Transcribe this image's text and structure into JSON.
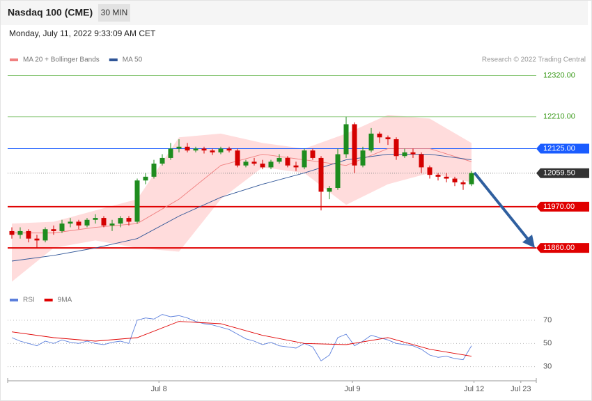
{
  "header": {
    "title": "Nasdaq 100 (CME)",
    "interval": "30 MIN",
    "date": "Monday, July 11, 2022 9:33:09 AM CET",
    "credit": "Research © 2022 Trading Central"
  },
  "chart_data": [
    {
      "type": "candlestick",
      "x": [
        0,
        1,
        2,
        3,
        4,
        5,
        6,
        7,
        8,
        9,
        10,
        11,
        12,
        13,
        14,
        15,
        16,
        17,
        18,
        19,
        20,
        21,
        22,
        23,
        24,
        25,
        26,
        27,
        28,
        29,
        30,
        31,
        32,
        33,
        34,
        35,
        36,
        37,
        38,
        39,
        40,
        41,
        42,
        43,
        44,
        45,
        46,
        47,
        48,
        49,
        50,
        51,
        52,
        53,
        54,
        55
      ],
      "open": [
        11905,
        11895,
        11905,
        11885,
        11880,
        11910,
        11905,
        11925,
        11930,
        11920,
        11935,
        11940,
        11920,
        11925,
        11940,
        11930,
        12040,
        12050,
        12085,
        12100,
        12125,
        12130,
        12120,
        12125,
        12120,
        12115,
        12125,
        12120,
        12080,
        12090,
        12085,
        12075,
        12090,
        12100,
        12080,
        12075,
        12120,
        12100,
        12010,
        12020,
        12110,
        12190,
        12080,
        12120,
        12165,
        12155,
        12150,
        12105,
        12115,
        12110,
        12075,
        12055,
        12050,
        12045,
        12035,
        12030
      ],
      "high": [
        11915,
        11915,
        11910,
        11895,
        11915,
        11920,
        11935,
        11940,
        11935,
        11940,
        11950,
        11945,
        11935,
        11945,
        11945,
        12045,
        12060,
        12095,
        12110,
        12140,
        12150,
        12140,
        12130,
        12130,
        12125,
        12130,
        12130,
        12125,
        12095,
        12100,
        12095,
        12095,
        12110,
        12105,
        12090,
        12125,
        12125,
        12105,
        12025,
        12125,
        12210,
        12195,
        12130,
        12180,
        12170,
        12160,
        12155,
        12125,
        12125,
        12115,
        12080,
        12060,
        12060,
        12050,
        12040,
        12065
      ],
      "low": [
        11885,
        11885,
        11875,
        11860,
        11875,
        11895,
        11900,
        11915,
        11910,
        11915,
        11925,
        11915,
        11905,
        11915,
        11920,
        11925,
        12030,
        12045,
        12080,
        12095,
        12115,
        12115,
        12115,
        12112,
        12108,
        12110,
        12115,
        12075,
        12075,
        12080,
        12070,
        12070,
        12085,
        12075,
        12065,
        12070,
        12095,
        11960,
        11990,
        12015,
        12100,
        12060,
        12075,
        12115,
        12140,
        12135,
        12095,
        12100,
        12100,
        12060,
        12045,
        12040,
        12035,
        12025,
        12015,
        12025
      ],
      "close": [
        11895,
        11905,
        11885,
        11880,
        11910,
        11905,
        11925,
        11930,
        11920,
        11935,
        11940,
        11920,
        11925,
        11940,
        11930,
        12040,
        12050,
        12085,
        12100,
        12125,
        12130,
        12120,
        12125,
        12120,
        12115,
        12125,
        12120,
        12080,
        12090,
        12085,
        12075,
        12090,
        12100,
        12080,
        12075,
        12120,
        12100,
        12010,
        12020,
        12110,
        12190,
        12080,
        12120,
        12165,
        12155,
        12150,
        12105,
        12115,
        12110,
        12075,
        12055,
        12050,
        12045,
        12035,
        12030,
        12060
      ],
      "up_color": "#1e8c1e",
      "down_color": "#d40000",
      "series": [
        {
          "name": "MA 20 + Bollinger Bands",
          "color": "#f08080",
          "band_color": "#ffdcdc",
          "x": [
            0,
            5,
            10,
            15,
            20,
            25,
            30,
            35,
            40,
            45,
            50,
            55
          ],
          "values": [
            11900,
            11900,
            11915,
            11925,
            11990,
            12080,
            12110,
            12095,
            12080,
            12125,
            12125,
            12090
          ],
          "upper": [
            11925,
            11930,
            11960,
            11990,
            12155,
            12165,
            12140,
            12125,
            12165,
            12215,
            12205,
            12140
          ],
          "lower": [
            11770,
            11860,
            11880,
            11860,
            11850,
            11990,
            12075,
            12060,
            11975,
            12030,
            12060,
            12035
          ]
        },
        {
          "name": "MA 50",
          "color": "#2f5597",
          "x": [
            0,
            5,
            10,
            15,
            20,
            25,
            30,
            35,
            40,
            45,
            50,
            55
          ],
          "values": [
            11825,
            11840,
            11860,
            11885,
            11945,
            11995,
            12030,
            12060,
            12095,
            12110,
            12110,
            12095
          ]
        }
      ],
      "levels": [
        {
          "value": 12320,
          "label": "12320.00",
          "color": "#8cc87a",
          "text_color": "#3a9a1a",
          "boxed": false
        },
        {
          "value": 12210,
          "label": "12210.00",
          "color": "#8cc87a",
          "text_color": "#3a9a1a",
          "boxed": false
        },
        {
          "value": 12125,
          "label": "12125.00",
          "color": "#1a5cff",
          "text_color": "#ffffff",
          "boxed": true
        },
        {
          "value": 12059.5,
          "label": "12059.50",
          "color": "#333333",
          "text_color": "#ffffff",
          "boxed": true,
          "dotted": true
        },
        {
          "value": 11970,
          "label": "11970.00",
          "color": "#e00000",
          "text_color": "#ffffff",
          "boxed": true
        },
        {
          "value": 11860,
          "label": "11860.00",
          "color": "#e00000",
          "text_color": "#ffffff",
          "boxed": true
        }
      ],
      "xlim": [
        -0.5,
        62.75
      ],
      "ylim": [
        11760,
        12345
      ]
    },
    {
      "type": "line",
      "series": [
        {
          "name": "RSI",
          "color": "#5b7fdc",
          "x": [
            0,
            1,
            2,
            3,
            4,
            5,
            6,
            7,
            8,
            9,
            10,
            11,
            12,
            13,
            14,
            15,
            16,
            17,
            18,
            19,
            20,
            21,
            22,
            23,
            24,
            25,
            26,
            27,
            28,
            29,
            30,
            31,
            32,
            33,
            34,
            35,
            36,
            37,
            38,
            39,
            40,
            41,
            42,
            43,
            44,
            45,
            46,
            47,
            48,
            49,
            50,
            51,
            52,
            53,
            54,
            55
          ],
          "values": [
            55,
            52,
            50,
            48,
            52,
            50,
            53,
            51,
            50,
            52,
            50,
            49,
            51,
            52,
            50,
            70,
            72,
            71,
            75,
            73,
            74,
            72,
            69,
            67,
            66,
            64,
            62,
            58,
            54,
            52,
            49,
            51,
            48,
            47,
            46,
            50,
            47,
            35,
            40,
            55,
            58,
            48,
            52,
            57,
            55,
            53,
            50,
            49,
            48,
            45,
            40,
            38,
            39,
            37,
            36,
            48
          ]
        },
        {
          "name": "9MA",
          "color": "#e00000",
          "x": [
            0,
            5,
            10,
            15,
            20,
            25,
            30,
            35,
            40,
            45,
            50,
            55
          ],
          "values": [
            60,
            55,
            52,
            55,
            69,
            67,
            57,
            50,
            49,
            55,
            45,
            39
          ]
        }
      ],
      "xlim": [
        -0.5,
        62.75
      ],
      "ylim": [
        22,
        76
      ],
      "yticks": [
        70,
        50,
        30
      ],
      "xticks": [
        {
          "value": 17.6,
          "label": "Jul 8"
        },
        {
          "value": 40.75,
          "label": "Jul 9"
        },
        {
          "value": 55.3,
          "label": "Jul 12"
        },
        {
          "value": 60.9,
          "label": "Jul 23"
        }
      ]
    }
  ]
}
